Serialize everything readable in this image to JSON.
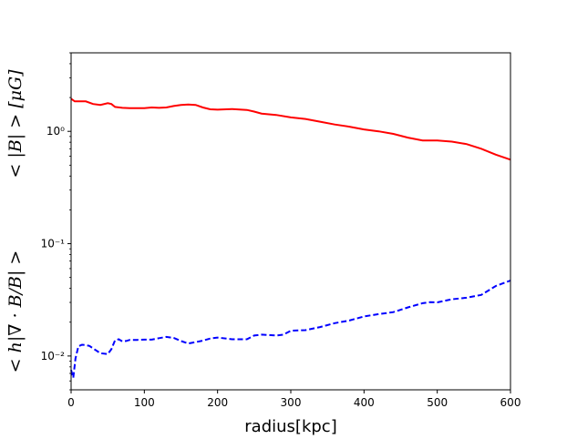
{
  "chart_data": {
    "type": "line",
    "xlabel": "radius[kpc]",
    "ylabel_upper": "< |B| > [μG]",
    "ylabel_lower": "< h|∇ · B/B| >",
    "xlim": [
      0,
      600
    ],
    "ylim": [
      0.005,
      5
    ],
    "yscale": "log",
    "grid": false,
    "x_ticks": [
      0,
      100,
      200,
      300,
      400,
      500,
      600
    ],
    "x_tick_labels": [
      "0",
      "100",
      "200",
      "300",
      "400",
      "500",
      "600"
    ],
    "y_ticks": [
      0.01,
      0.1,
      1
    ],
    "y_tick_labels": [
      "10⁻²",
      "10⁻¹",
      "10⁰"
    ],
    "series": [
      {
        "color": "#ff0000",
        "style": "solid",
        "x": [
          0,
          5,
          10,
          20,
          30,
          40,
          50,
          55,
          60,
          70,
          80,
          90,
          100,
          110,
          120,
          130,
          140,
          150,
          160,
          170,
          180,
          190,
          200,
          220,
          240,
          250,
          260,
          280,
          300,
          320,
          340,
          360,
          380,
          400,
          420,
          440,
          460,
          480,
          500,
          520,
          540,
          560,
          580,
          600
        ],
        "y": [
          1.95,
          1.85,
          1.85,
          1.85,
          1.75,
          1.72,
          1.78,
          1.75,
          1.65,
          1.62,
          1.61,
          1.61,
          1.61,
          1.63,
          1.62,
          1.63,
          1.68,
          1.72,
          1.73,
          1.72,
          1.63,
          1.57,
          1.56,
          1.58,
          1.55,
          1.5,
          1.44,
          1.4,
          1.33,
          1.29,
          1.22,
          1.15,
          1.1,
          1.04,
          1.0,
          0.95,
          0.88,
          0.83,
          0.83,
          0.81,
          0.77,
          0.7,
          0.62,
          0.56
        ]
      },
      {
        "color": "#0000ff",
        "style": "dashed",
        "x": [
          0,
          3,
          6,
          10,
          15,
          20,
          25,
          30,
          40,
          50,
          55,
          60,
          65,
          70,
          75,
          80,
          90,
          100,
          110,
          120,
          130,
          140,
          150,
          160,
          170,
          180,
          190,
          200,
          220,
          240,
          250,
          260,
          280,
          290,
          300,
          320,
          340,
          360,
          380,
          400,
          420,
          440,
          460,
          480,
          490,
          500,
          520,
          540,
          560,
          580,
          600
        ],
        "y": [
          0.0075,
          0.0064,
          0.0095,
          0.0122,
          0.0126,
          0.0125,
          0.0123,
          0.0117,
          0.0106,
          0.0104,
          0.0115,
          0.0138,
          0.0141,
          0.0135,
          0.0136,
          0.0139,
          0.0139,
          0.014,
          0.014,
          0.0144,
          0.0148,
          0.0145,
          0.0136,
          0.0129,
          0.0133,
          0.0137,
          0.0143,
          0.0146,
          0.0141,
          0.0141,
          0.0152,
          0.0155,
          0.0152,
          0.0155,
          0.0168,
          0.017,
          0.0181,
          0.0196,
          0.0207,
          0.0225,
          0.0236,
          0.0246,
          0.0271,
          0.0295,
          0.0301,
          0.03,
          0.032,
          0.033,
          0.035,
          0.042,
          0.047
        ]
      }
    ]
  }
}
